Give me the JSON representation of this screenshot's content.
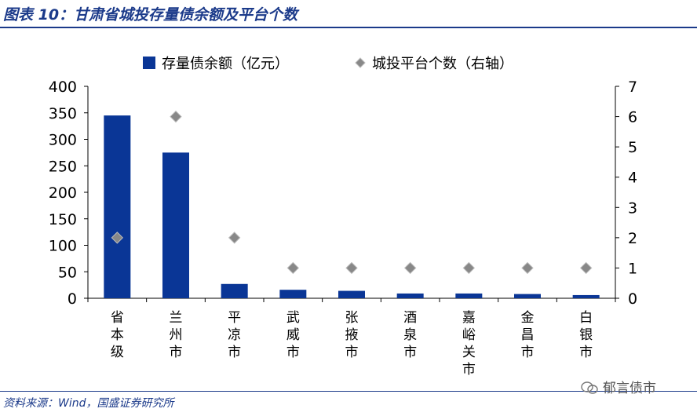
{
  "figure": {
    "title": "图表 10：甘肃省城投存量债余额及平台个数",
    "source": "资料来源：Wind，国盛证券研究所",
    "watermark": "郁言债市"
  },
  "chart_data": {
    "type": "bar",
    "categories": [
      "省本级",
      "兰州市",
      "平凉市",
      "武威市",
      "张掖市",
      "酒泉市",
      "嘉峪关市",
      "金昌市",
      "白银市"
    ],
    "series": [
      {
        "name": "存量债余额（亿元）",
        "kind": "bar",
        "axis": "left",
        "color": "#0a3696",
        "values": [
          345,
          275,
          27,
          16,
          14,
          9,
          9,
          8,
          6
        ]
      },
      {
        "name": "城投平台个数（右轴）",
        "kind": "marker",
        "axis": "right",
        "color": "#888888",
        "values": [
          2,
          6,
          2,
          1,
          1,
          1,
          1,
          1,
          1
        ]
      }
    ],
    "y_left": {
      "min": 0,
      "max": 400,
      "ticks": [
        0,
        50,
        100,
        150,
        200,
        250,
        300,
        350,
        400
      ]
    },
    "y_right": {
      "min": 0,
      "max": 7,
      "ticks": [
        0,
        1,
        2,
        3,
        4,
        5,
        6,
        7
      ]
    },
    "grid": false,
    "legend_position": "top"
  }
}
